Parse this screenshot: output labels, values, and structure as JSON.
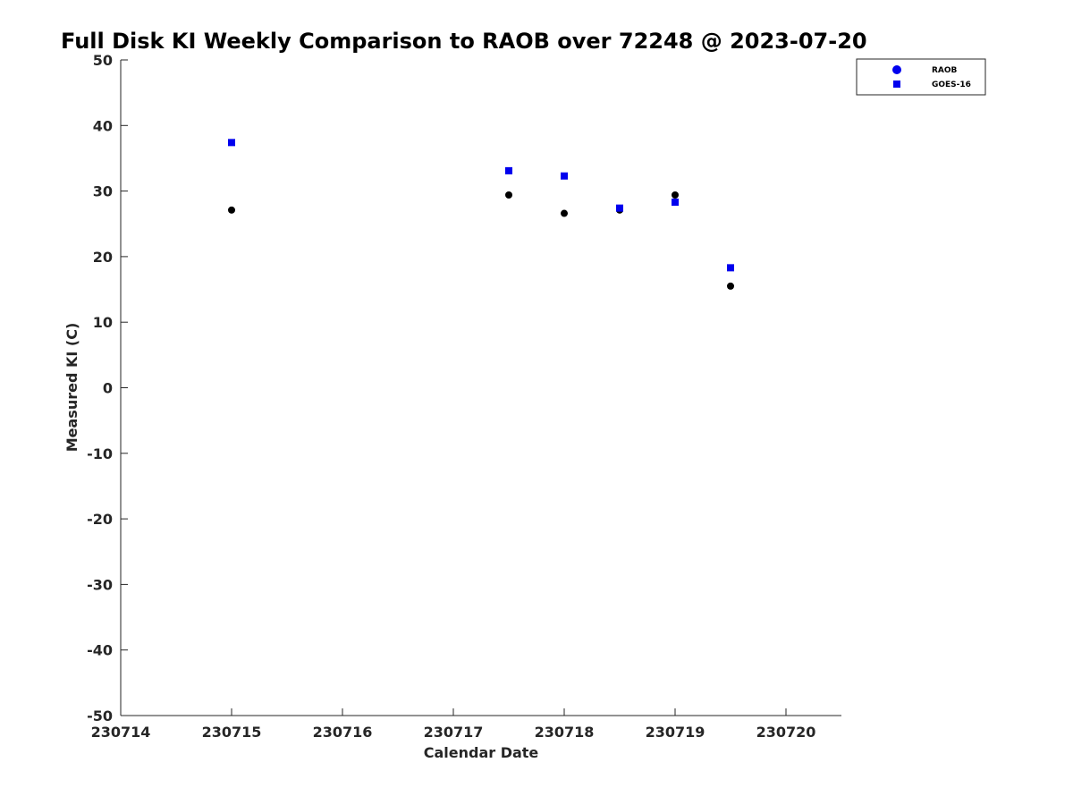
{
  "chart_data": {
    "type": "scatter",
    "title": "Full Disk KI Weekly Comparison to RAOB over 72248 @ 2023-07-20",
    "xlabel": "Calendar Date",
    "ylabel": "Measured KI (C)",
    "xlim": [
      230714,
      230720.5
    ],
    "ylim": [
      -50,
      50
    ],
    "x_ticks": [
      {
        "value": 230714,
        "label": "230714"
      },
      {
        "value": 230715,
        "label": "230715"
      },
      {
        "value": 230716,
        "label": "230716"
      },
      {
        "value": 230717,
        "label": "230717"
      },
      {
        "value": 230718,
        "label": "230718"
      },
      {
        "value": 230719,
        "label": "230719"
      },
      {
        "value": 230720,
        "label": "230720"
      }
    ],
    "y_ticks": [
      {
        "value": 50,
        "label": "50"
      },
      {
        "value": 40,
        "label": "40"
      },
      {
        "value": 30,
        "label": "30"
      },
      {
        "value": 20,
        "label": "20"
      },
      {
        "value": 10,
        "label": "10"
      },
      {
        "value": 0,
        "label": "0"
      },
      {
        "value": -10,
        "label": "-10"
      },
      {
        "value": -20,
        "label": "-20"
      },
      {
        "value": -30,
        "label": "-30"
      },
      {
        "value": -40,
        "label": "-40"
      },
      {
        "value": -50,
        "label": "-50"
      }
    ],
    "grid": false,
    "legend_position": "top-right",
    "series": [
      {
        "name": "RAOB",
        "marker": "circle",
        "color": "#000000",
        "legend_color": "#0000ee",
        "points": [
          {
            "x": 230715,
            "y": 27.1
          },
          {
            "x": 230717.5,
            "y": 29.4
          },
          {
            "x": 230718,
            "y": 26.6
          },
          {
            "x": 230718.5,
            "y": 27.1
          },
          {
            "x": 230719,
            "y": 29.4
          },
          {
            "x": 230719.5,
            "y": 15.5
          }
        ]
      },
      {
        "name": "GOES-16",
        "marker": "square",
        "color": "#0000ee",
        "legend_color": "#0000ee",
        "points": [
          {
            "x": 230715,
            "y": 37.4
          },
          {
            "x": 230717.5,
            "y": 33.1
          },
          {
            "x": 230718,
            "y": 32.3
          },
          {
            "x": 230718.5,
            "y": 27.4
          },
          {
            "x": 230719,
            "y": 28.3
          },
          {
            "x": 230719.5,
            "y": 18.3
          }
        ]
      }
    ]
  }
}
